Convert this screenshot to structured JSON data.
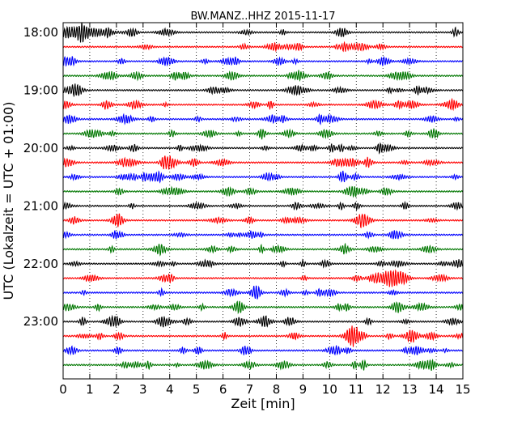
{
  "chart_data": {
    "type": "line",
    "title": "BW.MANZ..HHZ 2015-11-17",
    "xlabel": "Zeit  [min]",
    "ylabel": "UTC (Lokalzeit = UTC + 01:00)",
    "xlim": [
      0,
      15
    ],
    "x_ticks": [
      "0",
      "1",
      "2",
      "3",
      "4",
      "5",
      "6",
      "7",
      "8",
      "9",
      "10",
      "11",
      "12",
      "13",
      "14",
      "15"
    ],
    "y_tick_labels": [
      "18:00",
      "19:00",
      "20:00",
      "21:00",
      "22:00",
      "23:00"
    ],
    "grid": "vertical dotted",
    "trace_interval_minutes": 15,
    "trace_colors": [
      "#000000",
      "#ff0000",
      "#0000ff",
      "#007700"
    ],
    "traces": [
      {
        "start": "18:00",
        "color": "#000000"
      },
      {
        "start": "18:15",
        "color": "#ff0000"
      },
      {
        "start": "18:30",
        "color": "#0000ff"
      },
      {
        "start": "18:45",
        "color": "#007700"
      },
      {
        "start": "19:00",
        "color": "#000000"
      },
      {
        "start": "19:15",
        "color": "#ff0000"
      },
      {
        "start": "19:30",
        "color": "#0000ff"
      },
      {
        "start": "19:45",
        "color": "#007700"
      },
      {
        "start": "20:00",
        "color": "#000000"
      },
      {
        "start": "20:15",
        "color": "#ff0000"
      },
      {
        "start": "20:30",
        "color": "#0000ff"
      },
      {
        "start": "20:45",
        "color": "#007700"
      },
      {
        "start": "21:00",
        "color": "#000000"
      },
      {
        "start": "21:15",
        "color": "#ff0000"
      },
      {
        "start": "21:30",
        "color": "#0000ff"
      },
      {
        "start": "21:45",
        "color": "#007700"
      },
      {
        "start": "22:00",
        "color": "#000000"
      },
      {
        "start": "22:15",
        "color": "#ff0000"
      },
      {
        "start": "22:30",
        "color": "#0000ff"
      },
      {
        "start": "22:45",
        "color": "#007700"
      },
      {
        "start": "23:00",
        "color": "#000000"
      },
      {
        "start": "23:15",
        "color": "#ff0000"
      },
      {
        "start": "23:30",
        "color": "#0000ff"
      },
      {
        "start": "23:45",
        "color": "#007700"
      }
    ]
  }
}
